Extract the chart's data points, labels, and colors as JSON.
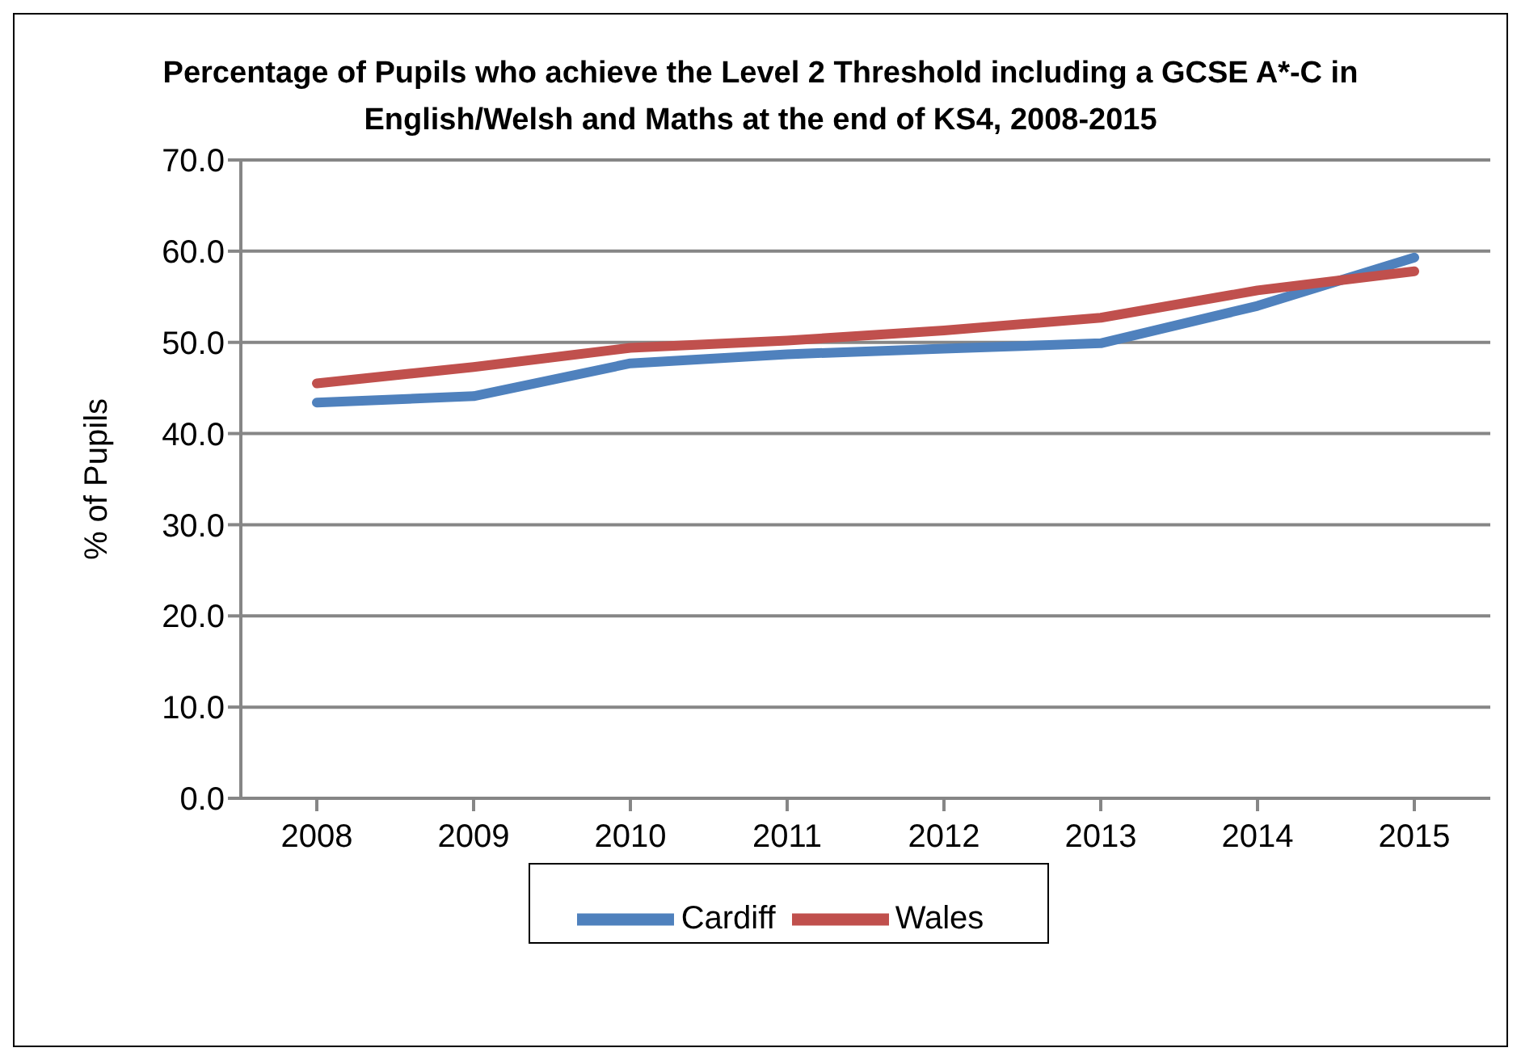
{
  "chart_data": {
    "type": "line",
    "title": "Percentage of Pupils who achieve the Level 2 Threshold including a GCSE A*-C in English/Welsh and Maths at the end of KS4, 2008-2015",
    "ylabel": "% of Pupils",
    "categories": [
      "2008",
      "2009",
      "2010",
      "2011",
      "2012",
      "2013",
      "2014",
      "2015"
    ],
    "series": [
      {
        "name": "Cardiff",
        "color": "#4f81bd",
        "values": [
          43.4,
          44.1,
          47.7,
          48.7,
          49.3,
          49.9,
          54.0,
          59.3
        ]
      },
      {
        "name": "Wales",
        "color": "#c0504d",
        "values": [
          45.5,
          47.3,
          49.4,
          50.2,
          51.3,
          52.7,
          55.7,
          57.8
        ]
      }
    ],
    "ylim": [
      0,
      70
    ],
    "yticks": [
      {
        "value": 0,
        "label": "0.0"
      },
      {
        "value": 10,
        "label": "10.0"
      },
      {
        "value": 20,
        "label": "20.0"
      },
      {
        "value": 30,
        "label": "30.0"
      },
      {
        "value": 40,
        "label": "40.0"
      },
      {
        "value": 50,
        "label": "50.0"
      },
      {
        "value": 60,
        "label": "60.0"
      },
      {
        "value": 70,
        "label": "70.0"
      }
    ],
    "grid": "y",
    "legend": "bottom",
    "marker": "none",
    "line_style": "solid"
  }
}
